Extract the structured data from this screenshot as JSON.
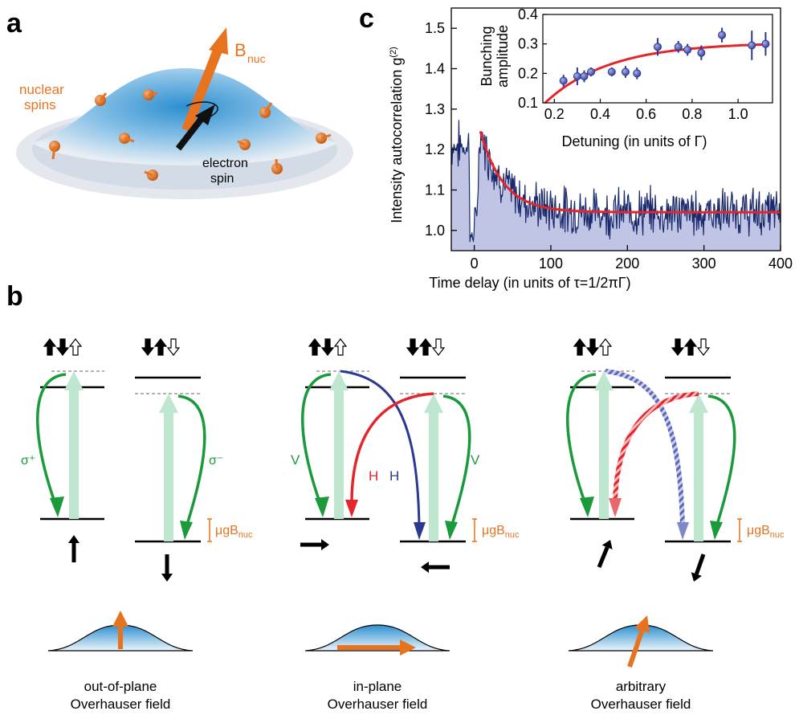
{
  "panels": {
    "a": "a",
    "b": "b",
    "c": "c"
  },
  "panel_a": {
    "bnuc_label": "B",
    "bnuc_sub": "nuc",
    "nuclear_label_line1": "nuclear",
    "nuclear_label_line2": "spins",
    "electron_label_line1": "electron",
    "electron_label_line2": "spin",
    "colors": {
      "orange": "#e8731f",
      "blue": "#2d8fd0",
      "black": "#000000"
    }
  },
  "panel_b": {
    "diagrams": [
      {
        "left_pol": "σ⁺",
        "right_pol": "σ⁻",
        "caption_line1": "out-of-plane",
        "caption_line2": "Overhauser field",
        "zeeman": "μgB",
        "zeeman_sub": "nuc"
      },
      {
        "left_pol": "V",
        "right_pol": "V",
        "cross_left": "H",
        "cross_right": "H",
        "caption_line1": "in-plane",
        "caption_line2": "Overhauser field",
        "zeeman": "μgB",
        "zeeman_sub": "nuc"
      },
      {
        "caption_line1": "arbitrary",
        "caption_line2": "Overhauser field",
        "zeeman": "μgB",
        "zeeman_sub": "nuc"
      }
    ],
    "colors": {
      "green": "#1a9a3a",
      "lightgreen": "#bfe6cf",
      "red": "#e3262b",
      "blue": "#2b3990",
      "orange": "#e8731f"
    }
  },
  "chart_data": [
    {
      "type": "line",
      "xlabel": "Time delay (in units of τ=1/2πΓ)",
      "ylabel": "Intensity autocorrelation g",
      "ylabel_sup": "(2)",
      "xlim": [
        -30,
        400
      ],
      "ylim": [
        0.95,
        1.55
      ],
      "xticks": [
        0,
        100,
        200,
        300,
        400
      ],
      "yticks": [
        1.0,
        1.1,
        1.2,
        1.3,
        1.4,
        1.5
      ],
      "fit": {
        "amplitude": 0.2,
        "offset": 1.045,
        "decay": 30,
        "start": 8,
        "color": "#e3262b"
      },
      "noise_color": "#1b2a6b",
      "fill_color": "#b9bfe3"
    },
    {
      "type": "scatter",
      "xlabel": "Detuning (in units of Γ)",
      "ylabel_line1": "Bunching",
      "ylabel_line2": "amplitude",
      "xlim": [
        0.15,
        1.15
      ],
      "ylim": [
        0.1,
        0.4
      ],
      "xticks": [
        0.2,
        0.4,
        0.6,
        0.8,
        1.0
      ],
      "yticks": [
        0.1,
        0.2,
        0.3,
        0.4
      ],
      "points": [
        {
          "x": 0.24,
          "y": 0.175,
          "err": 0.02
        },
        {
          "x": 0.3,
          "y": 0.19,
          "err": 0.03
        },
        {
          "x": 0.33,
          "y": 0.19,
          "err": 0.02
        },
        {
          "x": 0.36,
          "y": 0.205,
          "err": 0.015
        },
        {
          "x": 0.45,
          "y": 0.205,
          "err": 0.015
        },
        {
          "x": 0.51,
          "y": 0.205,
          "err": 0.02
        },
        {
          "x": 0.56,
          "y": 0.2,
          "err": 0.02
        },
        {
          "x": 0.65,
          "y": 0.29,
          "err": 0.03
        },
        {
          "x": 0.74,
          "y": 0.29,
          "err": 0.02
        },
        {
          "x": 0.78,
          "y": 0.28,
          "err": 0.02
        },
        {
          "x": 0.84,
          "y": 0.27,
          "err": 0.025
        },
        {
          "x": 0.93,
          "y": 0.33,
          "err": 0.025
        },
        {
          "x": 1.06,
          "y": 0.295,
          "err": 0.05
        },
        {
          "x": 1.12,
          "y": 0.3,
          "err": 0.04
        }
      ],
      "fit": {
        "color": "#e3262b"
      },
      "point_color": "#6a74c7"
    }
  ]
}
